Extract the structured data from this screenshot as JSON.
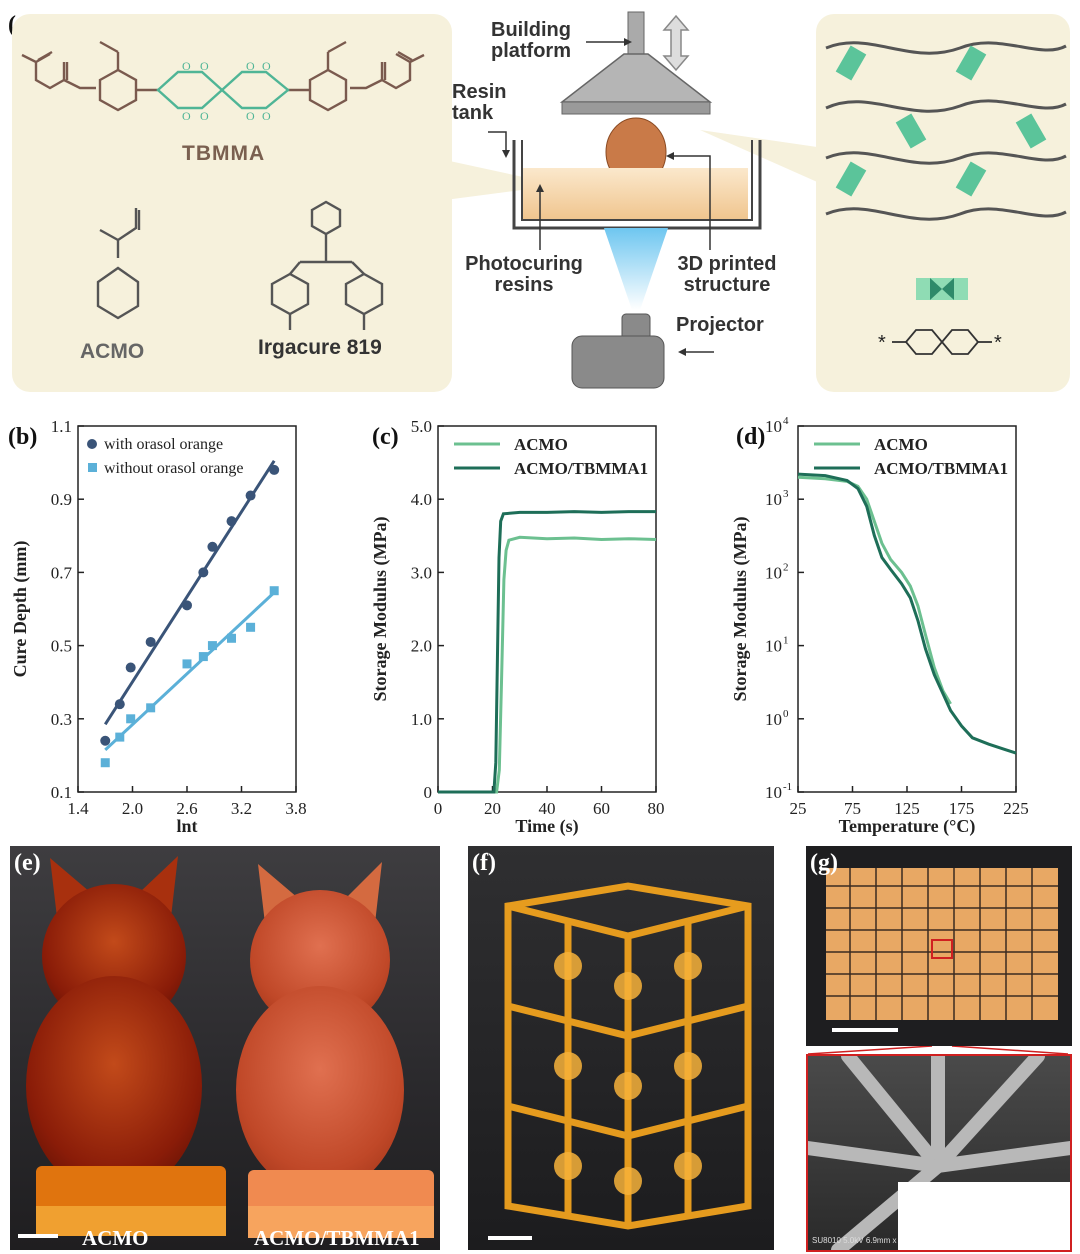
{
  "panels": {
    "a": {
      "label": "(a)",
      "chemicals": {
        "tbmma": "TBMMA",
        "acmo": "ACMO",
        "irgacure": "Irgacure 819"
      },
      "printer": {
        "platform": "Building platform",
        "resin_tank": "Resin tank",
        "photocuring": "Photocuring resins",
        "structure": "3D printed structure",
        "projector": "Projector"
      },
      "network_symbol": "*"
    },
    "b": {
      "label": "(b)"
    },
    "c": {
      "label": "(c)"
    },
    "d": {
      "label": "(d)"
    },
    "e": {
      "label": "(e)",
      "caption_left": "ACMO",
      "caption_right": "ACMO/TBMMA1"
    },
    "f": {
      "label": "(f)"
    },
    "g": {
      "label": "(g)",
      "sem_info": "SU8010 5.0kV 6.9mm x"
    }
  },
  "chart_data": [
    {
      "id": "b",
      "type": "scatter",
      "xlabel": "lnt",
      "ylabel": "Cure Depth  (mm)",
      "xlim": [
        1.4,
        3.8
      ],
      "ylim": [
        0.1,
        1.1
      ],
      "xticks": [
        "1.4",
        "2.0",
        "2.6",
        "3.2",
        "3.8"
      ],
      "xtick_values": [
        1.4,
        2.0,
        2.6,
        3.2,
        3.8
      ],
      "yticks": [
        "0.1",
        "0.3",
        "0.5",
        "0.7",
        "0.9",
        "1.1"
      ],
      "ytick_values": [
        0.1,
        0.3,
        0.5,
        0.7,
        0.9,
        1.1
      ],
      "legend_position": "top-left",
      "series": [
        {
          "name": "with orasol orange",
          "color": "#3a5478",
          "marker": "circle",
          "points": [
            [
              1.7,
              0.24
            ],
            [
              1.86,
              0.34
            ],
            [
              1.98,
              0.44
            ],
            [
              2.2,
              0.51
            ],
            [
              2.6,
              0.61
            ],
            [
              2.78,
              0.7
            ],
            [
              2.88,
              0.77
            ],
            [
              3.09,
              0.84
            ],
            [
              3.3,
              0.91
            ],
            [
              3.56,
              0.98
            ]
          ],
          "fit": [
            [
              1.7,
              0.285
            ],
            [
              3.56,
              1.005
            ]
          ]
        },
        {
          "name": "without orasol orange",
          "color": "#5bb0d8",
          "marker": "square",
          "points": [
            [
              1.7,
              0.18
            ],
            [
              1.86,
              0.25
            ],
            [
              1.98,
              0.3
            ],
            [
              2.2,
              0.33
            ],
            [
              2.6,
              0.45
            ],
            [
              2.78,
              0.47
            ],
            [
              2.88,
              0.5
            ],
            [
              3.09,
              0.52
            ],
            [
              3.3,
              0.55
            ],
            [
              3.56,
              0.65
            ]
          ],
          "fit": [
            [
              1.7,
              0.215
            ],
            [
              3.56,
              0.645
            ]
          ]
        }
      ]
    },
    {
      "id": "c",
      "type": "line",
      "xlabel": "Time  (s)",
      "ylabel": "Storage  Modulus  (MPa)",
      "xlim": [
        0,
        80
      ],
      "ylim": [
        0,
        5.0
      ],
      "xticks": [
        "0",
        "20",
        "40",
        "60",
        "80"
      ],
      "xtick_values": [
        0,
        20,
        40,
        60,
        80
      ],
      "yticks": [
        "0",
        "1.0",
        "2.0",
        "3.0",
        "4.0",
        "5.0"
      ],
      "ytick_values": [
        0,
        1.0,
        2.0,
        3.0,
        4.0,
        5.0
      ],
      "legend_position": "top-left",
      "series": [
        {
          "name": "ACMO",
          "color": "#6cc090",
          "points": [
            [
              0,
              0
            ],
            [
              21.5,
              0
            ],
            [
              22.5,
              0.3
            ],
            [
              23.3,
              1.5
            ],
            [
              24.2,
              2.9
            ],
            [
              25,
              3.3
            ],
            [
              26,
              3.44
            ],
            [
              30,
              3.48
            ],
            [
              40,
              3.46
            ],
            [
              50,
              3.47
            ],
            [
              60,
              3.45
            ],
            [
              70,
              3.46
            ],
            [
              80,
              3.45
            ]
          ]
        },
        {
          "name": "ACMO/TBMMA1",
          "color": "#1e6e58",
          "points": [
            [
              0,
              0
            ],
            [
              20.5,
              0
            ],
            [
              21.2,
              0.4
            ],
            [
              21.8,
              1.8
            ],
            [
              22.4,
              3.2
            ],
            [
              23,
              3.7
            ],
            [
              24,
              3.8
            ],
            [
              30,
              3.82
            ],
            [
              40,
              3.82
            ],
            [
              50,
              3.83
            ],
            [
              60,
              3.82
            ],
            [
              70,
              3.83
            ],
            [
              80,
              3.83
            ]
          ]
        }
      ]
    },
    {
      "id": "d",
      "type": "line",
      "xlabel": "Temperature  (°C)",
      "ylabel": "Storage  Modulus  (MPa)",
      "xlim": [
        25,
        225
      ],
      "ylim": [
        0.1,
        10000
      ],
      "yscale": "log",
      "xticks": [
        "25",
        "75",
        "125",
        "175",
        "225"
      ],
      "xtick_values": [
        25,
        75,
        125,
        175,
        225
      ],
      "yticks": [
        "10",
        "10",
        "10",
        "10",
        "10",
        "10"
      ],
      "ytick_values": [
        0.1,
        1,
        10,
        100,
        1000,
        10000
      ],
      "ytick_exponents": [
        "-1",
        "0",
        "1",
        "2",
        "3",
        "4"
      ],
      "legend_position": "top-left",
      "series": [
        {
          "name": "ACMO",
          "color": "#6cc090",
          "points": [
            [
              25,
              2000
            ],
            [
              50,
              1900
            ],
            [
              70,
              1750
            ],
            [
              80,
              1500
            ],
            [
              88,
              1000
            ],
            [
              95,
              500
            ],
            [
              102,
              250
            ],
            [
              110,
              150
            ],
            [
              120,
              100
            ],
            [
              128,
              65
            ],
            [
              135,
              35
            ],
            [
              142,
              14
            ],
            [
              150,
              5
            ],
            [
              158,
              2.4
            ],
            [
              165,
              1.6
            ]
          ]
        },
        {
          "name": "ACMO/TBMMA1",
          "color": "#1e6e58",
          "points": [
            [
              25,
              2200
            ],
            [
              50,
              2100
            ],
            [
              70,
              1800
            ],
            [
              80,
              1400
            ],
            [
              88,
              800
            ],
            [
              95,
              320
            ],
            [
              102,
              160
            ],
            [
              110,
              110
            ],
            [
              120,
              70
            ],
            [
              128,
              45
            ],
            [
              135,
              22
            ],
            [
              142,
              9
            ],
            [
              150,
              4
            ],
            [
              158,
              2.2
            ],
            [
              165,
              1.3
            ],
            [
              175,
              0.8
            ],
            [
              185,
              0.55
            ],
            [
              200,
              0.45
            ],
            [
              215,
              0.38
            ],
            [
              225,
              0.34
            ]
          ]
        }
      ]
    }
  ]
}
